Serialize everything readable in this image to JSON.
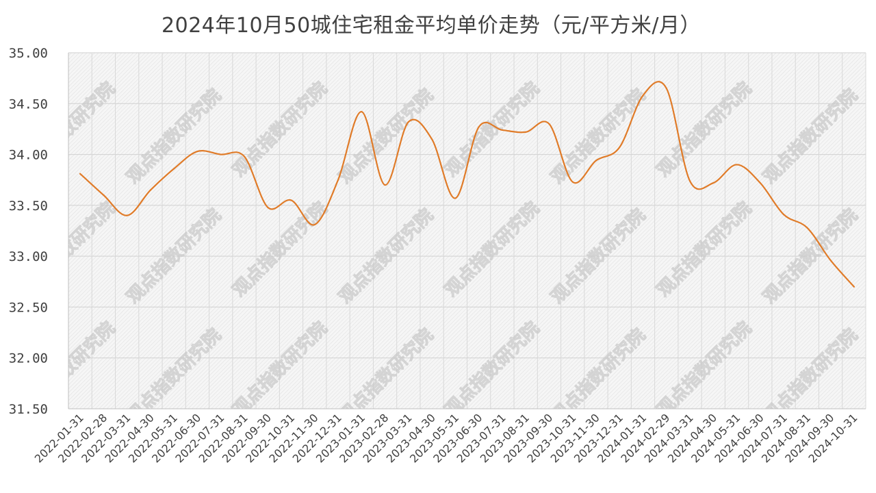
{
  "chart_data": {
    "type": "line",
    "title": "2024年10月50城住宅租金平均单价走势（元/平方米/月）",
    "xlabel": "",
    "ylabel": "",
    "ylim": [
      31.5,
      35.0
    ],
    "yticks": [
      "31.50",
      "32.00",
      "32.50",
      "33.00",
      "33.50",
      "34.00",
      "34.50",
      "35.00"
    ],
    "x": [
      "2022-01-31",
      "2022-02-28",
      "2022-03-31",
      "2022-04-30",
      "2022-05-31",
      "2022-06-30",
      "2022-07-31",
      "2022-08-31",
      "2022-09-30",
      "2022-10-31",
      "2022-11-30",
      "2022-12-31",
      "2023-01-31",
      "2023-02-28",
      "2023-03-31",
      "2023-04-30",
      "2023-05-31",
      "2023-06-30",
      "2023-07-31",
      "2023-08-31",
      "2023-09-30",
      "2023-10-31",
      "2023-11-30",
      "2023-12-31",
      "2024-01-31",
      "2024-02-29",
      "2024-03-31",
      "2024-04-30",
      "2024-05-31",
      "2024-06-30",
      "2024-07-31",
      "2024-08-31",
      "2024-09-30",
      "2024-10-31"
    ],
    "series": [
      {
        "values": [
          33.81,
          33.6,
          33.4,
          33.65,
          33.86,
          34.03,
          34.0,
          33.98,
          33.48,
          33.55,
          33.31,
          33.75,
          34.42,
          33.7,
          34.32,
          34.15,
          33.57,
          34.27,
          34.24,
          34.22,
          34.3,
          33.73,
          33.94,
          34.07,
          34.58,
          34.65,
          33.74,
          33.72,
          33.9,
          33.72,
          33.41,
          33.28,
          32.96,
          32.7
        ],
        "color": "#E07B28"
      }
    ],
    "grid": true,
    "legend": "none",
    "watermark": "观点指数研究院"
  }
}
